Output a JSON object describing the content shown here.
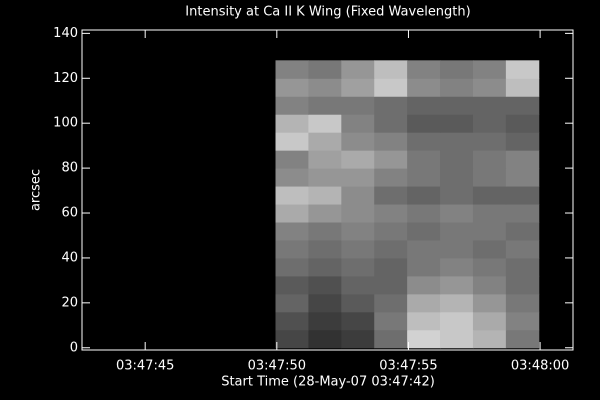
{
  "chart_data": {
    "type": "heatmap",
    "title": "Intensity at Ca II K Wing (Fixed Wavelength)",
    "x_label": "Start Time (28-May-07 03:47:42)",
    "y_label": "arcsec",
    "colormap": "gray",
    "xlim": [
      0.6,
      19.25
    ],
    "ylim": [
      -1,
      141.5
    ],
    "xticks": [
      {
        "value": 3,
        "label": "03:47:45"
      },
      {
        "value": 8,
        "label": "03:47:50"
      },
      {
        "value": 13,
        "label": "03:47:55"
      },
      {
        "value": 18,
        "label": "03:48:00"
      }
    ],
    "yticks": [
      0,
      20,
      40,
      60,
      80,
      100,
      120,
      140
    ],
    "xbins": [
      7.95,
      9.2,
      10.45,
      11.7,
      12.95,
      14.2,
      15.45,
      16.7,
      17.95
    ],
    "ybins": [
      0,
      8,
      16,
      24,
      32,
      40,
      48,
      56,
      64,
      72,
      80,
      88,
      96,
      104,
      112,
      120,
      128
    ],
    "values": [
      [
        70,
        50,
        60,
        110,
        210,
        200,
        180,
        120
      ],
      [
        80,
        60,
        70,
        120,
        190,
        200,
        170,
        130
      ],
      [
        100,
        70,
        90,
        110,
        170,
        180,
        150,
        120
      ],
      [
        90,
        80,
        100,
        100,
        140,
        150,
        130,
        110
      ],
      [
        110,
        100,
        110,
        100,
        120,
        130,
        120,
        110
      ],
      [
        120,
        110,
        120,
        110,
        120,
        120,
        110,
        120
      ],
      [
        130,
        120,
        130,
        120,
        110,
        120,
        120,
        110
      ],
      [
        170,
        150,
        140,
        130,
        120,
        130,
        120,
        120
      ],
      [
        190,
        180,
        140,
        110,
        100,
        110,
        100,
        100
      ],
      [
        140,
        150,
        150,
        130,
        120,
        110,
        120,
        130
      ],
      [
        130,
        160,
        170,
        150,
        120,
        110,
        120,
        130
      ],
      [
        200,
        170,
        140,
        130,
        110,
        110,
        110,
        100
      ],
      [
        180,
        200,
        130,
        110,
        90,
        90,
        100,
        90
      ],
      [
        130,
        120,
        120,
        110,
        100,
        100,
        100,
        100
      ],
      [
        150,
        140,
        160,
        200,
        140,
        130,
        140,
        190
      ],
      [
        130,
        120,
        150,
        190,
        130,
        120,
        130,
        200
      ]
    ]
  }
}
